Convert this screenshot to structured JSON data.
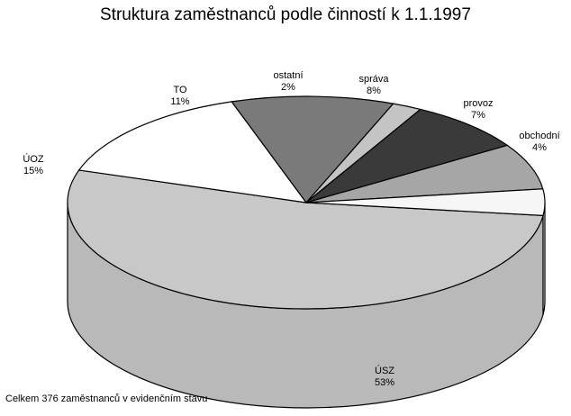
{
  "chart_data": {
    "type": "pie",
    "title": "Struktura zaměstnanců podle činností k 1.1.1997",
    "slices": [
      {
        "label": "ÚSZ",
        "value": 53,
        "value_label": "53%",
        "fill": "#c8c8c8",
        "side": "#b9b9b9"
      },
      {
        "label": "ÚOZ",
        "value": 15,
        "value_label": "15%",
        "fill": "#ffffff",
        "side": "#f4f4f4"
      },
      {
        "label": "TO",
        "value": 11,
        "value_label": "11%",
        "fill": "#7a7a7a",
        "side": "#666666"
      },
      {
        "label": "ostatní",
        "value": 2,
        "value_label": "2%",
        "fill": "#c4c4c4",
        "side": "#b0b0b0"
      },
      {
        "label": "správa",
        "value": 8,
        "value_label": "8%",
        "fill": "#3a3a3a",
        "side": "#2a2a2a"
      },
      {
        "label": "provoz",
        "value": 7,
        "value_label": "7%",
        "fill": "#a6a6a6",
        "side": "#959595"
      },
      {
        "label": "obchodní",
        "value": 4,
        "value_label": "4%",
        "fill": "#f6f6f6",
        "side": "#e6e6e6"
      }
    ],
    "footnote": "Celkem 376 zaměstnanců v evidenčním stavu"
  }
}
